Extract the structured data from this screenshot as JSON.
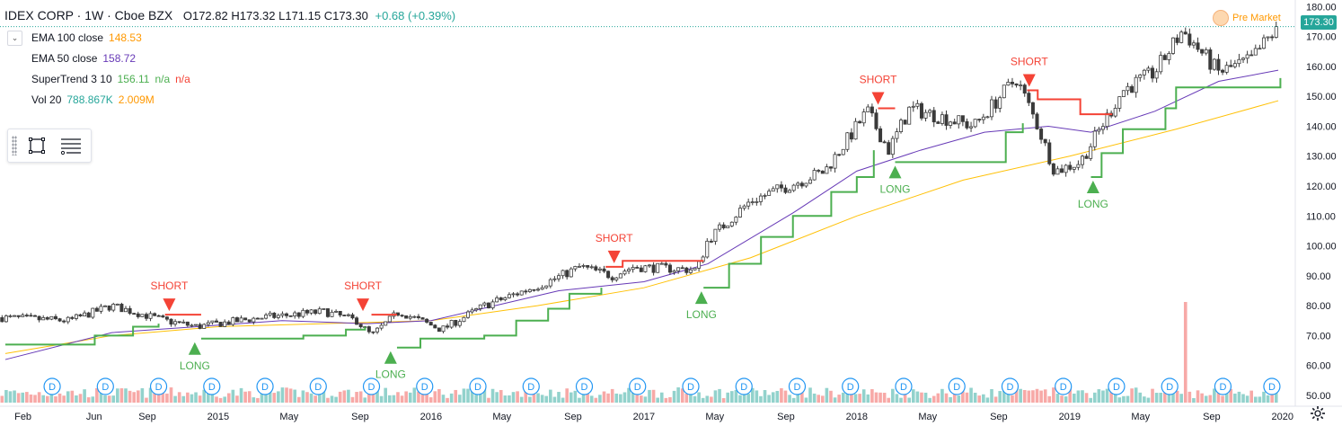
{
  "header": {
    "title": "IDEX CORP · 1W · Cboe BZX",
    "ohlc": "O172.82 H173.32 L171.15 C173.30",
    "change": "+0.68 (+0.39%)"
  },
  "indicators": [
    {
      "name": "EMA 100 close",
      "values": [
        "148.53"
      ],
      "colors": [
        "#ff9800"
      ]
    },
    {
      "name": "EMA 50 close",
      "values": [
        "158.72"
      ],
      "colors": [
        "#673ab7"
      ]
    },
    {
      "name": "SuperTrend 3 10",
      "values": [
        "156.11",
        "n/a",
        "n/a"
      ],
      "colors": [
        "#4caf50",
        "#4caf50",
        "#f44336"
      ]
    },
    {
      "name": "Vol 20",
      "values": [
        "788.867K",
        "2.009M"
      ],
      "colors": [
        "#26a69a",
        "#ff9800"
      ]
    }
  ],
  "premarket_label": "Pre Market",
  "last_price_label": "173.30",
  "colors": {
    "up": "#26a69a",
    "down": "#ef5350",
    "candle_body": "#3a3a3a",
    "ema100": "#ffc107",
    "ema50": "#673ab7",
    "st_long": "#4caf50",
    "st_short": "#f44336",
    "div_badge": "#2196f3"
  },
  "chart_data": {
    "type": "candlestick",
    "ylim": [
      48,
      182
    ],
    "y_ticks": [
      "180.00",
      "170.00",
      "160.00",
      "150.00",
      "140.00",
      "130.00",
      "120.00",
      "110.00",
      "100.00",
      "90.00",
      "80.00",
      "70.00",
      "60.00",
      "50.00"
    ],
    "x_ticks": [
      {
        "label": "Feb",
        "t": 2014.083
      },
      {
        "label": "Jun",
        "t": 2014.417
      },
      {
        "label": "Sep",
        "t": 2014.667
      },
      {
        "label": "2015",
        "t": 2015.0
      },
      {
        "label": "May",
        "t": 2015.333
      },
      {
        "label": "Sep",
        "t": 2015.667
      },
      {
        "label": "2016",
        "t": 2016.0
      },
      {
        "label": "May",
        "t": 2016.333
      },
      {
        "label": "Sep",
        "t": 2016.667
      },
      {
        "label": "2017",
        "t": 2017.0
      },
      {
        "label": "May",
        "t": 2017.333
      },
      {
        "label": "Sep",
        "t": 2017.667
      },
      {
        "label": "2018",
        "t": 2018.0
      },
      {
        "label": "May",
        "t": 2018.333
      },
      {
        "label": "Sep",
        "t": 2018.667
      },
      {
        "label": "2019",
        "t": 2019.0
      },
      {
        "label": "May",
        "t": 2019.333
      },
      {
        "label": "Sep",
        "t": 2019.667
      },
      {
        "label": "2020",
        "t": 2020.0
      }
    ],
    "price_path": [
      [
        2014.0,
        76
      ],
      [
        2014.3,
        75
      ],
      [
        2014.5,
        80
      ],
      [
        2014.75,
        75
      ],
      [
        2014.9,
        73
      ],
      [
        2015.2,
        76
      ],
      [
        2015.5,
        78
      ],
      [
        2015.65,
        75
      ],
      [
        2015.72,
        70
      ],
      [
        2015.85,
        78
      ],
      [
        2016.05,
        72
      ],
      [
        2016.25,
        80
      ],
      [
        2016.55,
        88
      ],
      [
        2016.7,
        93
      ],
      [
        2016.85,
        90
      ],
      [
        2016.95,
        93
      ],
      [
        2017.25,
        92
      ],
      [
        2017.3,
        102
      ],
      [
        2017.5,
        115
      ],
      [
        2017.85,
        125
      ],
      [
        2018.05,
        145
      ],
      [
        2018.15,
        132
      ],
      [
        2018.25,
        146
      ],
      [
        2018.55,
        140
      ],
      [
        2018.75,
        156
      ],
      [
        2018.85,
        140
      ],
      [
        2018.93,
        125
      ],
      [
        2019.05,
        128
      ],
      [
        2019.25,
        152
      ],
      [
        2019.4,
        158
      ],
      [
        2019.53,
        172
      ],
      [
        2019.7,
        158
      ],
      [
        2019.85,
        162
      ],
      [
        2019.98,
        173.3
      ]
    ],
    "ema100_path": [
      [
        2014.0,
        64
      ],
      [
        2014.5,
        70
      ],
      [
        2015.0,
        73
      ],
      [
        2015.5,
        74
      ],
      [
        2016.0,
        75
      ],
      [
        2016.5,
        80
      ],
      [
        2017.0,
        86
      ],
      [
        2017.5,
        96
      ],
      [
        2018.0,
        110
      ],
      [
        2018.5,
        122
      ],
      [
        2019.0,
        130
      ],
      [
        2019.5,
        139
      ],
      [
        2019.98,
        148.53
      ]
    ],
    "ema50_path": [
      [
        2014.0,
        62
      ],
      [
        2014.5,
        71
      ],
      [
        2014.9,
        73
      ],
      [
        2015.3,
        75
      ],
      [
        2015.7,
        74
      ],
      [
        2016.0,
        75
      ],
      [
        2016.3,
        80
      ],
      [
        2016.6,
        85
      ],
      [
        2017.0,
        88
      ],
      [
        2017.3,
        94
      ],
      [
        2017.7,
        111
      ],
      [
        2018.0,
        125
      ],
      [
        2018.3,
        132
      ],
      [
        2018.6,
        138
      ],
      [
        2018.9,
        140
      ],
      [
        2019.1,
        138
      ],
      [
        2019.4,
        145
      ],
      [
        2019.7,
        155
      ],
      [
        2019.98,
        158.72
      ]
    ],
    "supertrend": [
      {
        "trend": "long",
        "points": [
          [
            2014.0,
            67
          ],
          [
            2014.33,
            67
          ],
          [
            2014.42,
            70
          ],
          [
            2014.6,
            73
          ],
          [
            2014.72,
            74
          ]
        ]
      },
      {
        "trend": "short",
        "points": [
          [
            2014.75,
            77
          ],
          [
            2014.92,
            77
          ]
        ]
      },
      {
        "trend": "long",
        "points": [
          [
            2014.92,
            69
          ],
          [
            2015.4,
            70
          ],
          [
            2015.6,
            72
          ],
          [
            2015.69,
            73
          ]
        ]
      },
      {
        "trend": "short",
        "points": [
          [
            2015.72,
            77
          ],
          [
            2015.84,
            77
          ]
        ]
      },
      {
        "trend": "long",
        "points": [
          [
            2015.84,
            66
          ],
          [
            2015.95,
            69
          ],
          [
            2016.25,
            70
          ],
          [
            2016.4,
            75
          ],
          [
            2016.55,
            79
          ],
          [
            2016.65,
            84
          ],
          [
            2016.8,
            86
          ]
        ]
      },
      {
        "trend": "short",
        "points": [
          [
            2016.82,
            93
          ],
          [
            2016.9,
            95
          ],
          [
            2017.28,
            95
          ]
        ]
      },
      {
        "trend": "long",
        "points": [
          [
            2017.28,
            86
          ],
          [
            2017.4,
            94
          ],
          [
            2017.55,
            103
          ],
          [
            2017.7,
            110
          ],
          [
            2017.88,
            118
          ],
          [
            2018.0,
            123
          ],
          [
            2018.08,
            132
          ]
        ]
      },
      {
        "trend": "short",
        "points": [
          [
            2018.1,
            146
          ],
          [
            2018.18,
            146
          ]
        ]
      },
      {
        "trend": "long",
        "points": [
          [
            2018.18,
            128
          ],
          [
            2018.6,
            128
          ],
          [
            2018.7,
            138
          ],
          [
            2018.78,
            141
          ]
        ]
      },
      {
        "trend": "short",
        "points": [
          [
            2018.8,
            152
          ],
          [
            2018.85,
            149
          ],
          [
            2019.0,
            149
          ],
          [
            2019.05,
            144
          ],
          [
            2019.2,
            144
          ]
        ]
      },
      {
        "trend": "long",
        "points": [
          [
            2019.1,
            123
          ],
          [
            2019.15,
            131
          ],
          [
            2019.25,
            139
          ],
          [
            2019.4,
            139
          ],
          [
            2019.45,
            146
          ],
          [
            2019.5,
            153
          ],
          [
            2019.96,
            153
          ],
          [
            2019.99,
            156.11
          ]
        ]
      }
    ],
    "signals": [
      {
        "type": "short",
        "label": "SHORT",
        "t": 2014.77,
        "price": 77
      },
      {
        "type": "long",
        "label": "LONG",
        "t": 2014.89,
        "price": 69
      },
      {
        "type": "short",
        "label": "SHORT",
        "t": 2015.68,
        "price": 77
      },
      {
        "type": "long",
        "label": "LONG",
        "t": 2015.81,
        "price": 66
      },
      {
        "type": "short",
        "label": "SHORT",
        "t": 2016.86,
        "price": 93
      },
      {
        "type": "long",
        "label": "LONG",
        "t": 2017.27,
        "price": 86
      },
      {
        "type": "short",
        "label": "SHORT",
        "t": 2018.1,
        "price": 146
      },
      {
        "type": "long",
        "label": "LONG",
        "t": 2018.18,
        "price": 128
      },
      {
        "type": "short",
        "label": "SHORT",
        "t": 2018.81,
        "price": 152
      },
      {
        "type": "long",
        "label": "LONG",
        "t": 2019.11,
        "price": 123
      }
    ],
    "dividend_marker_label": "D",
    "dividend_times": [
      2014.22,
      2014.47,
      2014.72,
      2014.97,
      2015.22,
      2015.47,
      2015.72,
      2015.97,
      2016.22,
      2016.47,
      2016.72,
      2016.97,
      2017.22,
      2017.47,
      2017.72,
      2017.97,
      2018.22,
      2018.47,
      2018.72,
      2018.97,
      2019.22,
      2019.47,
      2019.72,
      2019.95
    ],
    "volume_spike": {
      "t": 2019.55,
      "ratio": 0.32
    }
  }
}
